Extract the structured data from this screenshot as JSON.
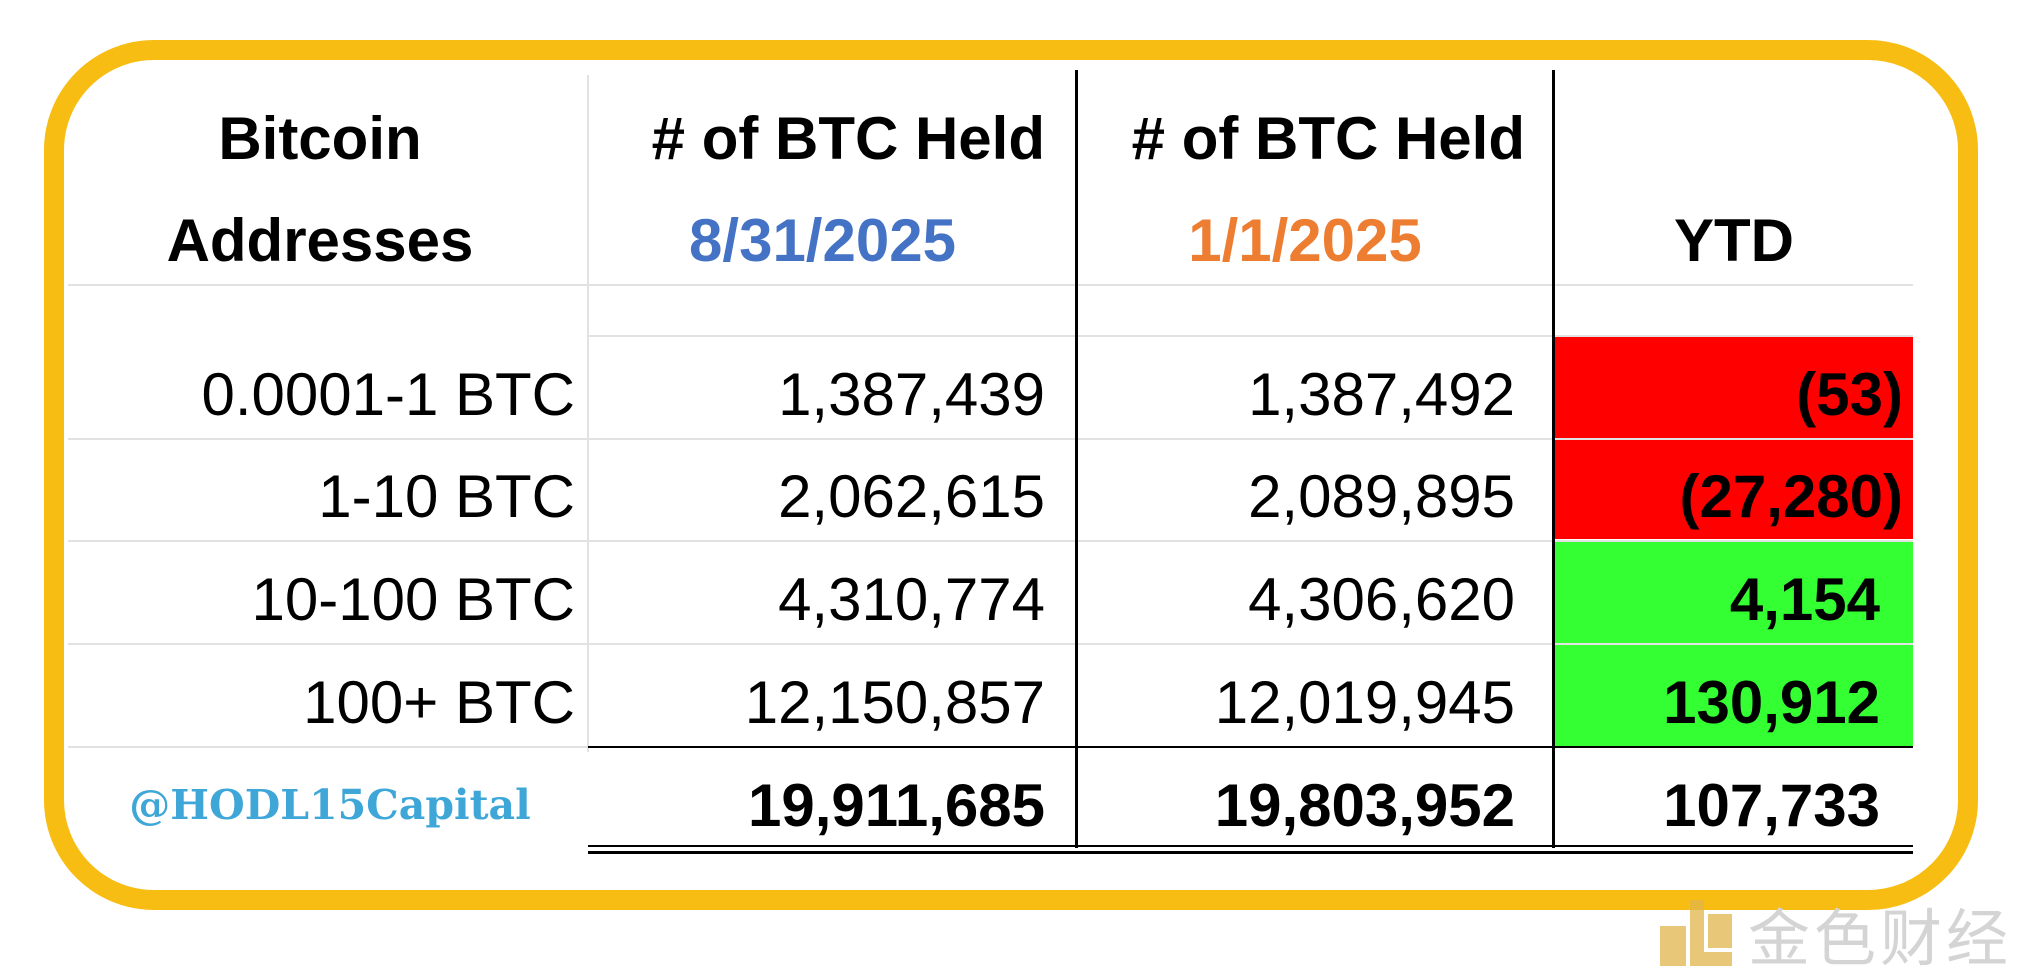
{
  "headers": {
    "col1_line1": "Bitcoin",
    "col1_line2": "Addresses",
    "col2_line1": "# of BTC Held",
    "col2_date": "8/31/2025",
    "col3_line1": "# of BTC Held",
    "col3_date": "1/1/2025",
    "col4": "YTD"
  },
  "rows": [
    {
      "label": "0.0001-1 BTC",
      "current": "1,387,439",
      "start": "1,387,492",
      "ytd": "(53)",
      "ytd_status": "negative"
    },
    {
      "label": "1-10 BTC",
      "current": "2,062,615",
      "start": "2,089,895",
      "ytd": "(27,280)",
      "ytd_status": "negative"
    },
    {
      "label": "10-100 BTC",
      "current": "4,310,774",
      "start": "4,306,620",
      "ytd": "4,154",
      "ytd_status": "positive"
    },
    {
      "label": "100+ BTC",
      "current": "12,150,857",
      "start": "12,019,945",
      "ytd": "130,912",
      "ytd_status": "positive"
    }
  ],
  "totals": {
    "current": "19,911,685",
    "start": "19,803,952",
    "ytd": "107,733"
  },
  "credit": "@HODL15Capital",
  "watermark": {
    "text": "金色财经",
    "icon": "jinse-logo-icon"
  },
  "colors": {
    "frame": "#f7bd12",
    "date_current": "#4472c4",
    "date_start": "#ed7d31",
    "negative": "#ff0000",
    "positive": "#33ff33",
    "credit": "#3ea7d8"
  }
}
